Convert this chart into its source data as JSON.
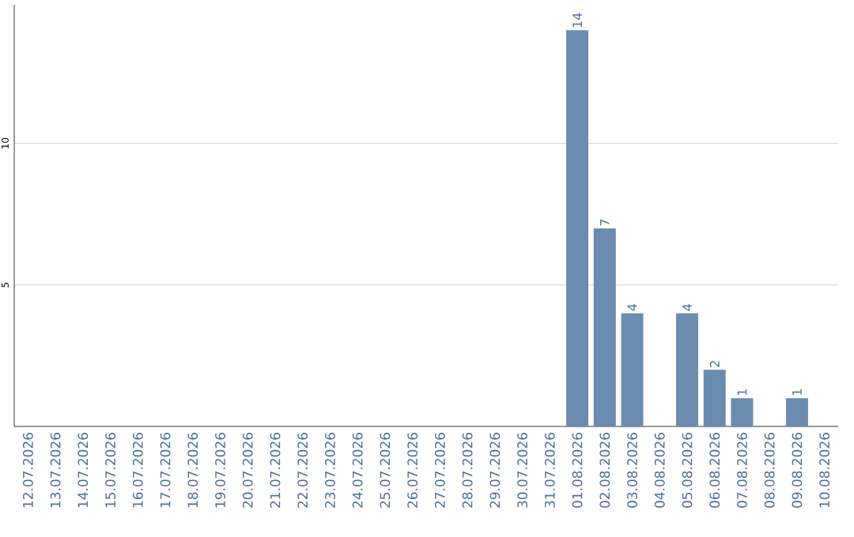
{
  "chart_data": {
    "type": "bar",
    "categories": [
      "12.07.2026",
      "13.07.2026",
      "14.07.2026",
      "15.07.2026",
      "16.07.2026",
      "17.07.2026",
      "18.07.2026",
      "19.07.2026",
      "20.07.2026",
      "21.07.2026",
      "22.07.2026",
      "23.07.2026",
      "24.07.2026",
      "25.07.2026",
      "26.07.2026",
      "27.07.2026",
      "28.07.2026",
      "29.07.2026",
      "30.07.2026",
      "31.07.2026",
      "01.08.2026",
      "02.08.2026",
      "03.08.2026",
      "04.08.2026",
      "05.08.2026",
      "06.08.2026",
      "07.08.2026",
      "08.08.2026",
      "09.08.2026",
      "10.08.2026"
    ],
    "values": [
      0,
      0,
      0,
      0,
      0,
      0,
      0,
      0,
      0,
      0,
      0,
      0,
      0,
      0,
      0,
      0,
      0,
      0,
      0,
      0,
      14,
      7,
      4,
      0,
      4,
      2,
      1,
      0,
      1,
      0
    ],
    "value_labels": [
      null,
      null,
      null,
      null,
      null,
      null,
      null,
      null,
      null,
      null,
      null,
      null,
      null,
      null,
      null,
      null,
      null,
      null,
      null,
      null,
      "14",
      "7",
      "4",
      null,
      "4",
      "2",
      "1",
      null,
      "1",
      null
    ],
    "color": "#6b8cae",
    "ylim": [
      0,
      14.9
    ],
    "yticks": [
      5,
      10
    ],
    "grid": "y"
  }
}
